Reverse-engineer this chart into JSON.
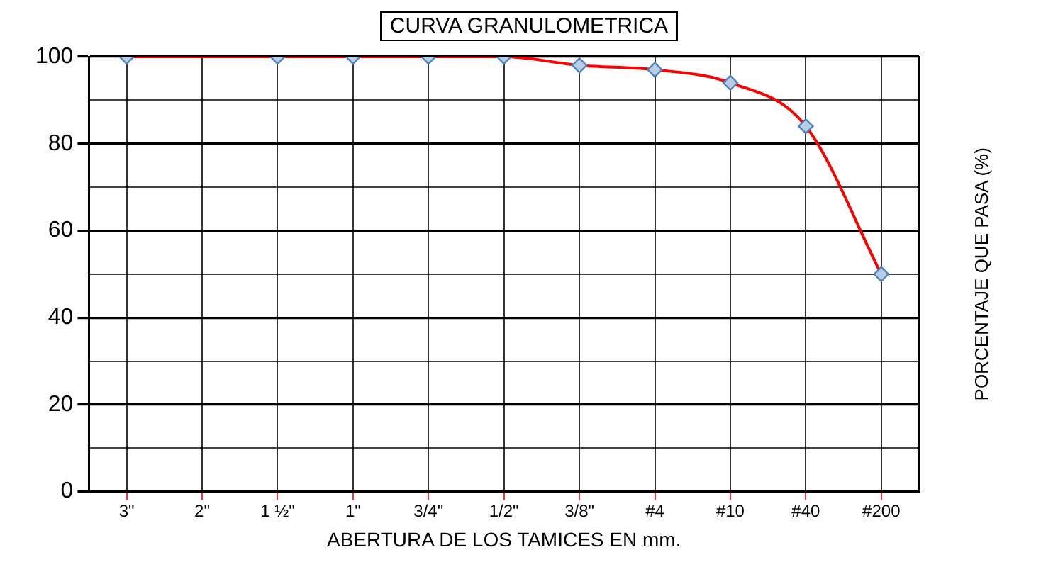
{
  "chart_data": {
    "type": "line",
    "title": "CURVA GRANULOMETRICA",
    "xlabel": "ABERTURA DE LOS TAMICES EN mm.",
    "ylabel": "PORCENTAJE QUE PASA (%)",
    "categories": [
      "3\"",
      "2\"",
      "1 ½\"",
      "1\"",
      "3/4\"",
      "1/2\"",
      "3/8\"",
      "#4",
      "#10",
      "#40",
      "#200"
    ],
    "series": [
      {
        "color": "#ff0000",
        "values": [
          100,
          null,
          100,
          100,
          100,
          100,
          98,
          97,
          94,
          84,
          50
        ]
      }
    ],
    "marker": "diamond",
    "line_style": "solid",
    "grid": true,
    "ylim": [
      0,
      100
    ],
    "yticks": [
      0,
      {
        "value": 10,
        "label": null
      },
      20,
      {
        "value": 30,
        "label": null
      },
      40,
      {
        "value": 50,
        "label": null
      },
      60,
      {
        "value": 70,
        "label": null
      },
      80,
      {
        "value": 90,
        "label": null
      },
      100
    ]
  }
}
